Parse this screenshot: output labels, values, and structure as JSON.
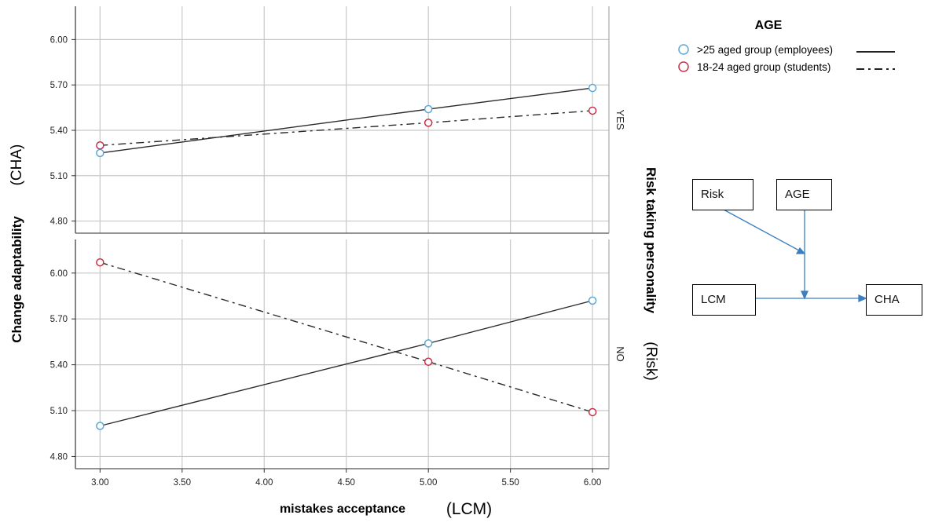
{
  "chart_data": {
    "type": "line",
    "x_label_main": "mistakes acceptance",
    "x_label_suffix": "(LCM)",
    "y_label": "Change adaptability",
    "y_label_suffix": "(CHA)",
    "facet_label_main": "Risk taking personality",
    "facet_label_suffix": "(Risk)",
    "x_ticks": [
      "3.00",
      "3.50",
      "4.00",
      "4.50",
      "5.00",
      "5.50",
      "6.00"
    ],
    "y_ticks": [
      "4.80",
      "5.10",
      "5.40",
      "5.70",
      "6.00"
    ],
    "xlim": [
      2.85,
      6.1
    ],
    "grid": true,
    "legend": {
      "title": "AGE",
      "position": "top-right",
      "entries": [
        {
          "label": ">25 aged group (employees)",
          "marker_color": "#5aa9d6",
          "line_style": "solid"
        },
        {
          "label": "18-24 aged group (students)",
          "marker_color": "#c8304a",
          "line_style": "dashdot"
        }
      ]
    },
    "panels": [
      {
        "facet": "YES",
        "ylim": [
          4.72,
          6.22
        ],
        "series": [
          {
            "name": ">25 aged group (employees)",
            "x": [
              3,
              5,
              6
            ],
            "y": [
              5.25,
              5.54,
              5.68
            ]
          },
          {
            "name": "18-24 aged group (students)",
            "x": [
              3,
              5,
              6
            ],
            "y": [
              5.3,
              5.45,
              5.53
            ]
          }
        ]
      },
      {
        "facet": "NO",
        "ylim": [
          4.72,
          6.22
        ],
        "series": [
          {
            "name": ">25 aged group (employees)",
            "x": [
              3,
              5,
              6
            ],
            "y": [
              5.0,
              5.54,
              5.82
            ]
          },
          {
            "name": "18-24 aged group (students)",
            "x": [
              3,
              5,
              6
            ],
            "y": [
              6.07,
              5.42,
              5.09
            ]
          }
        ]
      }
    ]
  },
  "diagram": {
    "boxes": {
      "risk": "Risk",
      "age": "AGE",
      "lcm": "LCM",
      "cha": "CHA"
    }
  }
}
